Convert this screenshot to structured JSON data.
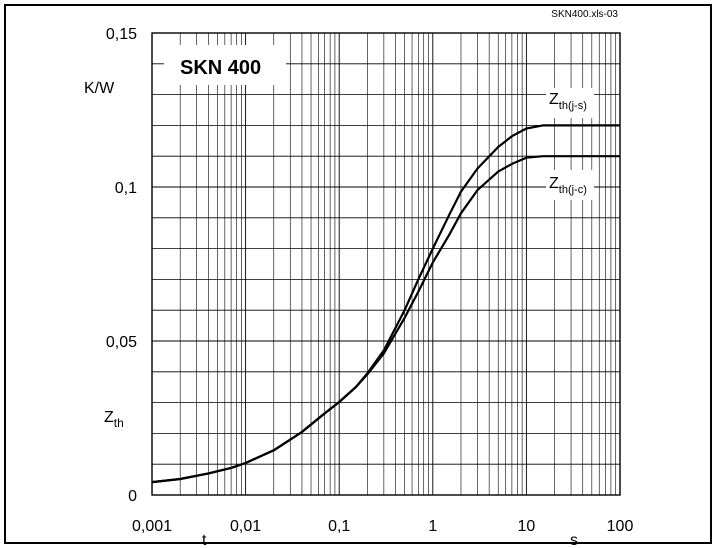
{
  "chart_data": {
    "type": "line",
    "file_label": "SKN400.xls-03",
    "title": "SKN 400",
    "x_axis": {
      "scale": "log",
      "range": [
        0.001,
        100
      ],
      "tick_labels": [
        "0,001",
        "0,01",
        "0,1",
        "1",
        "10",
        "100"
      ],
      "symbol": "t",
      "unit": "s"
    },
    "y_axis": {
      "scale": "linear",
      "range": [
        0,
        0.15
      ],
      "tick_labels": [
        "0",
        "0,05",
        "0,1",
        "0,15"
      ],
      "minor_step": 0.01,
      "symbol": "Z",
      "symbol_sub": "th",
      "unit": "K/W"
    },
    "grid": true,
    "series": [
      {
        "name": "Z",
        "name_sub": "th(j-s)",
        "x": [
          0.001,
          0.002,
          0.004,
          0.007,
          0.01,
          0.02,
          0.04,
          0.07,
          0.1,
          0.15,
          0.2,
          0.3,
          0.5,
          0.7,
          1,
          1.5,
          2,
          3,
          5,
          7,
          10,
          15,
          20,
          50,
          100
        ],
        "y": [
          0.0042,
          0.0052,
          0.007,
          0.0088,
          0.0104,
          0.0145,
          0.0205,
          0.0265,
          0.0302,
          0.035,
          0.0395,
          0.047,
          0.06,
          0.07,
          0.08,
          0.091,
          0.0985,
          0.106,
          0.113,
          0.1165,
          0.119,
          0.12,
          0.12,
          0.12,
          0.12
        ]
      },
      {
        "name": "Z",
        "name_sub": "th(j-c)",
        "x": [
          0.001,
          0.002,
          0.004,
          0.007,
          0.01,
          0.02,
          0.04,
          0.07,
          0.1,
          0.15,
          0.2,
          0.3,
          0.5,
          0.7,
          1,
          1.5,
          2,
          3,
          5,
          7,
          10,
          15,
          20,
          50,
          100
        ],
        "y": [
          0.0042,
          0.0052,
          0.007,
          0.0088,
          0.0104,
          0.0145,
          0.0205,
          0.0265,
          0.0302,
          0.035,
          0.0392,
          0.046,
          0.0575,
          0.066,
          0.0755,
          0.0845,
          0.0915,
          0.099,
          0.105,
          0.1075,
          0.1095,
          0.11,
          0.11,
          0.11,
          0.11
        ]
      }
    ]
  }
}
